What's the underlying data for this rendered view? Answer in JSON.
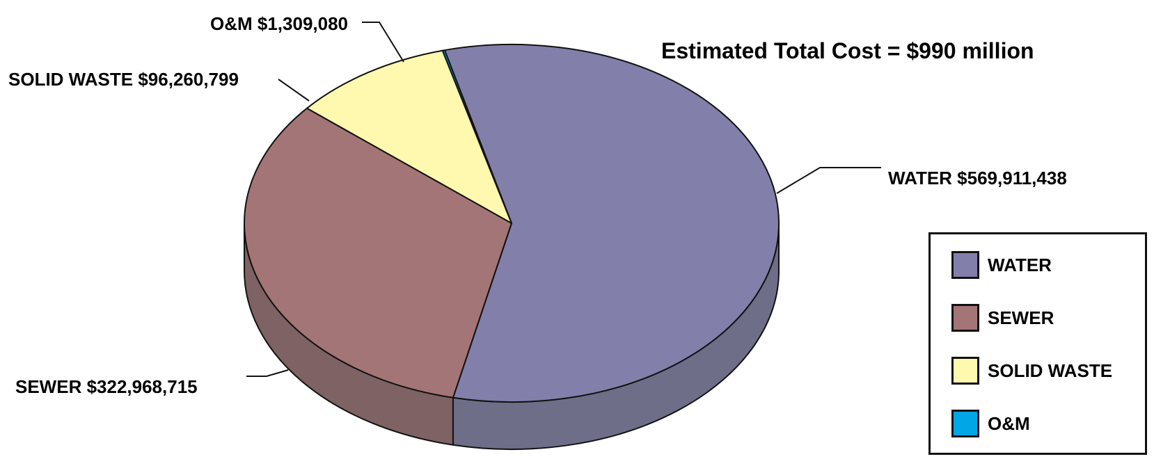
{
  "chart_data": {
    "type": "pie",
    "title": "Estimated Total Cost = $990 million",
    "slices": [
      {
        "label": "WATER",
        "value": 569911438,
        "display": "WATER $569,911,438",
        "color": "#8280AA",
        "side_color": "#6E6E88"
      },
      {
        "label": "SEWER",
        "value": 322968715,
        "display": "SEWER $322,968,715",
        "color": "#A47576",
        "side_color": "#7E6264"
      },
      {
        "label": "SOLID WASTE",
        "value": 96260799,
        "display": "SOLID WASTE $96,260,799",
        "color": "#FFF8AF",
        "side_color": "#CFC98E"
      },
      {
        "label": "O&M",
        "value": 1309080,
        "display": "O&M $1,309,080",
        "color": "#00A6E5",
        "side_color": "#0085B8"
      }
    ],
    "legend": {
      "placement": "bottom-right",
      "items": [
        "WATER",
        "SEWER",
        "SOLID WASTE",
        "O&M"
      ]
    },
    "style": "3d"
  }
}
